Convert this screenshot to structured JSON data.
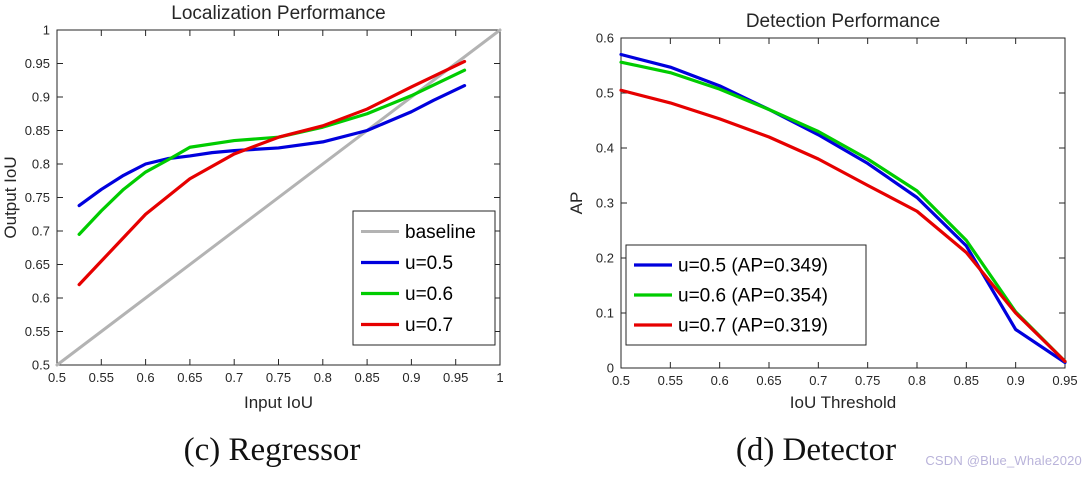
{
  "chart_data": [
    {
      "type": "line",
      "title": "Localization Performance",
      "xlabel": "Input IoU",
      "ylabel": "Output IoU",
      "xlim": [
        0.5,
        1.0
      ],
      "ylim": [
        0.5,
        1.0
      ],
      "xticks": [
        0.5,
        0.55,
        0.6,
        0.65,
        0.7,
        0.75,
        0.8,
        0.85,
        0.9,
        0.95,
        1
      ],
      "xtick_labels": [
        "0.5",
        "0.55",
        "0.6",
        "0.65",
        "0.7",
        "0.75",
        "0.8",
        "0.85",
        "0.9",
        "0.95",
        "1"
      ],
      "yticks": [
        0.5,
        0.55,
        0.6,
        0.65,
        0.7,
        0.75,
        0.8,
        0.85,
        0.9,
        0.95,
        1
      ],
      "ytick_labels": [
        "0.5",
        "0.55",
        "0.6",
        "0.65",
        "0.7",
        "0.75",
        "0.8",
        "0.85",
        "0.9",
        "0.95",
        "1"
      ],
      "grid": false,
      "legend_position": "southeast",
      "series": [
        {
          "name": "baseline",
          "color": "#b3b3b3",
          "width": 3,
          "x": [
            0.5,
            1.0
          ],
          "y": [
            0.5,
            1.0
          ]
        },
        {
          "name": "u=0.5",
          "color": "#0000dd",
          "width": 3.2,
          "x": [
            0.525,
            0.55,
            0.575,
            0.6,
            0.625,
            0.65,
            0.675,
            0.7,
            0.75,
            0.8,
            0.85,
            0.9,
            0.925,
            0.96
          ],
          "y": [
            0.738,
            0.762,
            0.783,
            0.8,
            0.808,
            0.812,
            0.817,
            0.82,
            0.824,
            0.833,
            0.85,
            0.878,
            0.895,
            0.917
          ]
        },
        {
          "name": "u=0.6",
          "color": "#00cc00",
          "width": 3.2,
          "x": [
            0.525,
            0.55,
            0.575,
            0.6,
            0.625,
            0.65,
            0.7,
            0.75,
            0.8,
            0.85,
            0.9,
            0.96
          ],
          "y": [
            0.695,
            0.73,
            0.762,
            0.788,
            0.806,
            0.825,
            0.835,
            0.84,
            0.855,
            0.875,
            0.902,
            0.94
          ]
        },
        {
          "name": "u=0.7",
          "color": "#e60000",
          "width": 3.2,
          "x": [
            0.525,
            0.55,
            0.6,
            0.65,
            0.7,
            0.75,
            0.8,
            0.85,
            0.9,
            0.96
          ],
          "y": [
            0.62,
            0.655,
            0.725,
            0.778,
            0.815,
            0.84,
            0.857,
            0.882,
            0.915,
            0.953
          ]
        }
      ]
    },
    {
      "type": "line",
      "title": "Detection Performance",
      "xlabel": "IoU Threshold",
      "ylabel": "AP",
      "xlim": [
        0.5,
        0.95
      ],
      "ylim": [
        0,
        0.6
      ],
      "xticks": [
        0.5,
        0.55,
        0.6,
        0.65,
        0.7,
        0.75,
        0.8,
        0.85,
        0.9,
        0.95
      ],
      "xtick_labels": [
        "0.5",
        "0.55",
        "0.6",
        "0.65",
        "0.7",
        "0.75",
        "0.8",
        "0.85",
        "0.9",
        "0.95"
      ],
      "yticks": [
        0,
        0.1,
        0.2,
        0.3,
        0.4,
        0.5,
        0.6
      ],
      "ytick_labels": [
        "0",
        "0.1",
        "0.2",
        "0.3",
        "0.4",
        "0.5",
        "0.6"
      ],
      "grid": false,
      "legend_position": "southwest",
      "series": [
        {
          "name": "u=0.5 (AP=0.349)",
          "color": "#0000dd",
          "width": 3.2,
          "x": [
            0.5,
            0.55,
            0.6,
            0.65,
            0.7,
            0.75,
            0.8,
            0.85,
            0.9,
            0.95
          ],
          "y": [
            0.57,
            0.547,
            0.513,
            0.47,
            0.424,
            0.372,
            0.31,
            0.222,
            0.07,
            0.01
          ]
        },
        {
          "name": "u=0.6 (AP=0.354)",
          "color": "#00cc00",
          "width": 3.2,
          "x": [
            0.5,
            0.55,
            0.6,
            0.65,
            0.7,
            0.75,
            0.8,
            0.85,
            0.9,
            0.95
          ],
          "y": [
            0.556,
            0.537,
            0.507,
            0.47,
            0.43,
            0.38,
            0.322,
            0.232,
            0.102,
            0.012
          ]
        },
        {
          "name": "u=0.7 (AP=0.319)",
          "color": "#e60000",
          "width": 3.2,
          "x": [
            0.5,
            0.55,
            0.6,
            0.65,
            0.7,
            0.75,
            0.8,
            0.85,
            0.9,
            0.95
          ],
          "y": [
            0.505,
            0.482,
            0.453,
            0.42,
            0.38,
            0.332,
            0.285,
            0.21,
            0.1,
            0.012
          ]
        }
      ]
    }
  ],
  "captions": {
    "left": "(c) Regressor",
    "right": "(d) Detector"
  },
  "watermark": "CSDN @Blue_Whale2020"
}
